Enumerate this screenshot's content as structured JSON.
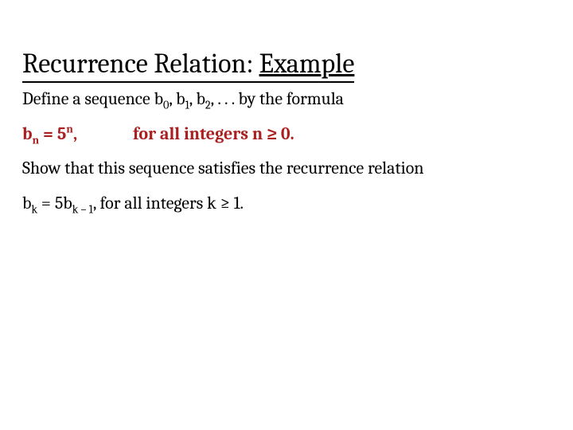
{
  "slide": {
    "title_main": "Recurrence Relation: ",
    "title_example": "Example",
    "line1_a": "Define a sequence b",
    "line1_b": ", b",
    "line1_c": ", b",
    "line1_d": ", . . . by the formula",
    "sub0": "0",
    "sub1": "1",
    "sub2": "2",
    "formula_left_a": "b",
    "formula_left_sub": "n",
    "formula_left_b": " = 5",
    "formula_left_sup": "n",
    "formula_left_c": ",",
    "formula_right": "for all integers n ≥  0.",
    "line3": "Show that this sequence satisfies the recurrence relation",
    "line4_a": "b",
    "line4_subk": "k",
    "line4_b": " = 5b",
    "line4_subkm1": "k – 1",
    "line4_c": ", for all integers k ≥ 1."
  },
  "style": {
    "highlight_color": "#aa2020",
    "text_color": "#000000",
    "background_color": "#ffffff",
    "title_fontsize": 34,
    "body_fontsize": 22,
    "font_family": "Cambria, Georgia, serif",
    "slide_width": 720,
    "slide_height": 540
  }
}
